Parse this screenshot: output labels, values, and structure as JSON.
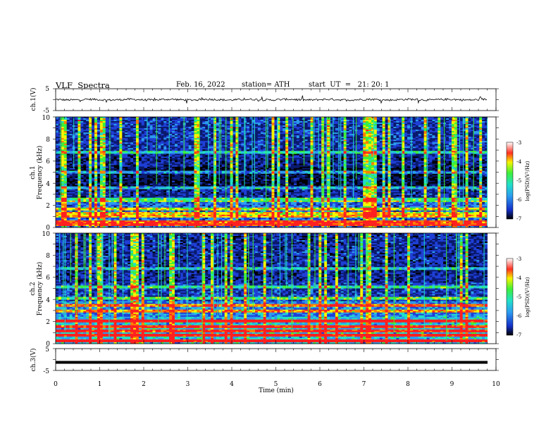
{
  "header": {
    "title": "VLF  Spectra",
    "date": "Feb. 16, 2022",
    "station": "station= ATH",
    "start": "start  UT  =   21: 20: 1"
  },
  "chart_data": [
    {
      "type": "line",
      "ylabel": "ch.1(V)",
      "ylim": [
        -5,
        5
      ],
      "yticks": [
        "5",
        "-5"
      ],
      "xlim": [
        0,
        10
      ],
      "description_series": "noisy waveform around 0 V"
    },
    {
      "type": "heatmap",
      "ylabel_top": "ch.1",
      "ylabel": "Frequency  (kHz)",
      "ylim": [
        0,
        10
      ],
      "yticks": [
        "0",
        "2",
        "4",
        "6",
        "8",
        "10"
      ],
      "xlim": [
        0,
        10
      ],
      "colorbar": {
        "label": "log(PSD)(V²/Hz)",
        "range": [
          -7,
          -3
        ],
        "ticks": [
          "-3",
          "-4",
          "-5",
          "-6",
          "-7"
        ]
      }
    },
    {
      "type": "heatmap",
      "ylabel_top": "ch.2",
      "ylabel": "Frequency  (kHz)",
      "ylim": [
        0,
        10
      ],
      "yticks": [
        "0",
        "2",
        "4",
        "6",
        "8",
        "10"
      ],
      "xlim": [
        0,
        10
      ],
      "colorbar": {
        "label": "log(PSD)(V²/Hz)",
        "range": [
          -7,
          -3
        ],
        "ticks": [
          "-3",
          "-4",
          "-5",
          "-6",
          "-7"
        ]
      }
    },
    {
      "type": "line",
      "ylabel": "ch.3(V)",
      "ylim": [
        -5,
        5
      ],
      "yticks": [
        "5",
        "-5"
      ],
      "series_value": -1.3,
      "xlim": [
        0,
        10
      ],
      "xlabel": "Time  (min)",
      "xticks": [
        "0",
        "1",
        "2",
        "3",
        "4",
        "5",
        "6",
        "7",
        "8",
        "9",
        "10"
      ]
    }
  ],
  "palette": {
    "colormap": [
      "#000000",
      "#0a1a6e",
      "#1f3fd6",
      "#2c9cf0",
      "#21e0c8",
      "#3ef03a",
      "#f5f500",
      "#ff8000",
      "#ff2020",
      "#ffffff"
    ]
  }
}
